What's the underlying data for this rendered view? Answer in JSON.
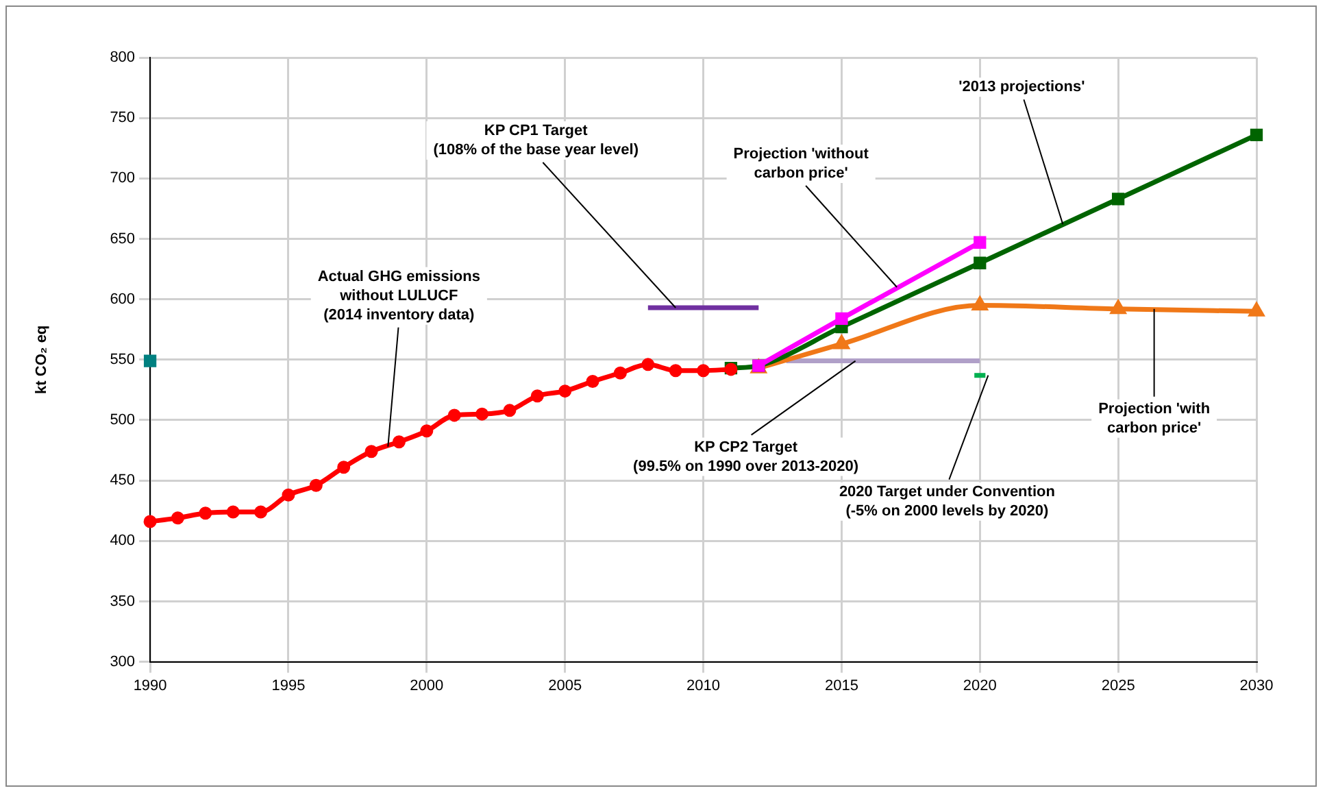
{
  "chart_data": {
    "type": "line",
    "ylabel": "kt CO₂ eq",
    "xlim": [
      1990,
      2030
    ],
    "xticks": [
      1990,
      1995,
      2000,
      2005,
      2010,
      2015,
      2020,
      2025,
      2030
    ],
    "ylim": [
      300,
      800
    ],
    "yticks": [
      300,
      350,
      400,
      450,
      500,
      550,
      600,
      650,
      700,
      750,
      800
    ],
    "grid": true,
    "legend": false,
    "series": [
      {
        "color": "#ff0000",
        "marker": "circle",
        "x": [
          1990,
          1991,
          1992,
          1993,
          1994,
          1995,
          1996,
          1997,
          1998,
          1999,
          2000,
          2001,
          2002,
          2003,
          2004,
          2005,
          2006,
          2007,
          2008,
          2009,
          2010,
          2011
        ],
        "values": [
          416,
          419,
          423,
          424,
          424,
          438,
          446,
          461,
          474,
          482,
          491,
          504,
          505,
          508,
          520,
          524,
          532,
          539,
          546,
          541,
          541,
          542
        ]
      },
      {
        "color": "#ff00ff",
        "marker": "square",
        "x": [
          2012,
          2015,
          2020
        ],
        "values": [
          545,
          584,
          647
        ]
      },
      {
        "color": "#006400",
        "marker": "square",
        "x": [
          2011,
          2012,
          2015,
          2020,
          2025,
          2030
        ],
        "values": [
          543,
          545,
          577,
          630,
          683,
          736
        ]
      },
      {
        "color": "#f07818",
        "marker": "triangle",
        "x": [
          2012,
          2015,
          2020,
          2025,
          2030
        ],
        "values": [
          543,
          563,
          595,
          592,
          590
        ]
      },
      {
        "color": "#7030a0",
        "marker": "none",
        "x": [
          2008,
          2012
        ],
        "values": [
          593,
          593
        ]
      },
      {
        "color": "#b0a0c8",
        "marker": "none",
        "x": [
          2013,
          2020
        ],
        "values": [
          549,
          549
        ]
      },
      {
        "color": "#00b050",
        "marker": "none",
        "x": [
          2019.8,
          2020.2
        ],
        "values": [
          537,
          537
        ]
      },
      {
        "color": "#008080",
        "marker": "square",
        "x": [
          1990
        ],
        "values": [
          549
        ]
      }
    ],
    "annotations": [
      {
        "text": "KP CP1 Target\n(108% of the base year level)",
        "x": 2009,
        "y": 593
      },
      {
        "text": "Projection 'without\ncarbon price'",
        "x": 2017,
        "y": 610
      },
      {
        "text": "'2013 projections'",
        "x": 2023,
        "y": 662
      },
      {
        "text": "Actual GHG emissions\nwithout LULUCF\n(2014 inventory data)",
        "x": 1998.6,
        "y": 478
      },
      {
        "text": "KP CP2 Target\n(99.5% on 1990 over 2013-2020)",
        "x": 2015.5,
        "y": 549
      },
      {
        "text": "2020 Target under Convention\n(-5% on 2000 levels by 2020)",
        "x": 2020.3,
        "y": 537
      },
      {
        "text": "Projection 'with\ncarbon price'",
        "x": 2026.3,
        "y": 592
      }
    ]
  }
}
